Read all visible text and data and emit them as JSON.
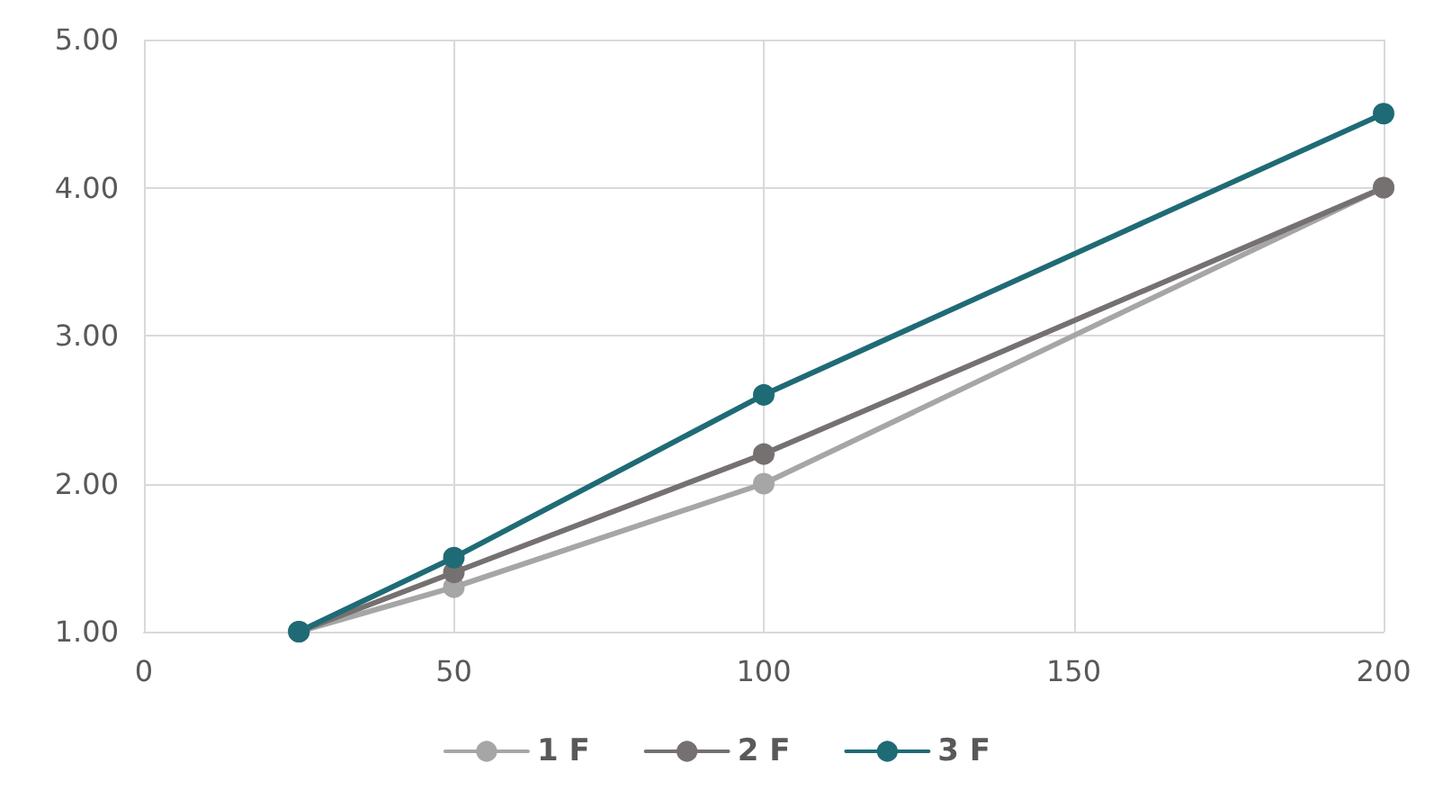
{
  "chart_data": {
    "type": "line",
    "x": [
      25,
      50,
      100,
      200
    ],
    "xlim": [
      0,
      200
    ],
    "xticks": [
      0,
      50,
      100,
      150,
      200
    ],
    "ylim": [
      1,
      5
    ],
    "yticks": [
      {
        "value": 1,
        "label": "1.00"
      },
      {
        "value": 2,
        "label": "2.00"
      },
      {
        "value": 3,
        "label": "3.00"
      },
      {
        "value": 4,
        "label": "4.00"
      },
      {
        "value": 5,
        "label": "5.00"
      }
    ],
    "grid": true,
    "legend": "bottom",
    "marker": "circle",
    "line_style": "solid",
    "series": [
      {
        "name": "1 F",
        "color": "#a6a6a6",
        "values": [
          1,
          1.3,
          2.0,
          4.0
        ]
      },
      {
        "name": "2 F",
        "color": "#767171",
        "values": [
          1,
          1.4,
          2.2,
          4.0
        ]
      },
      {
        "name": "3 F",
        "color": "#1f6b75",
        "values": [
          1,
          1.5,
          2.6,
          4.5
        ]
      }
    ]
  }
}
